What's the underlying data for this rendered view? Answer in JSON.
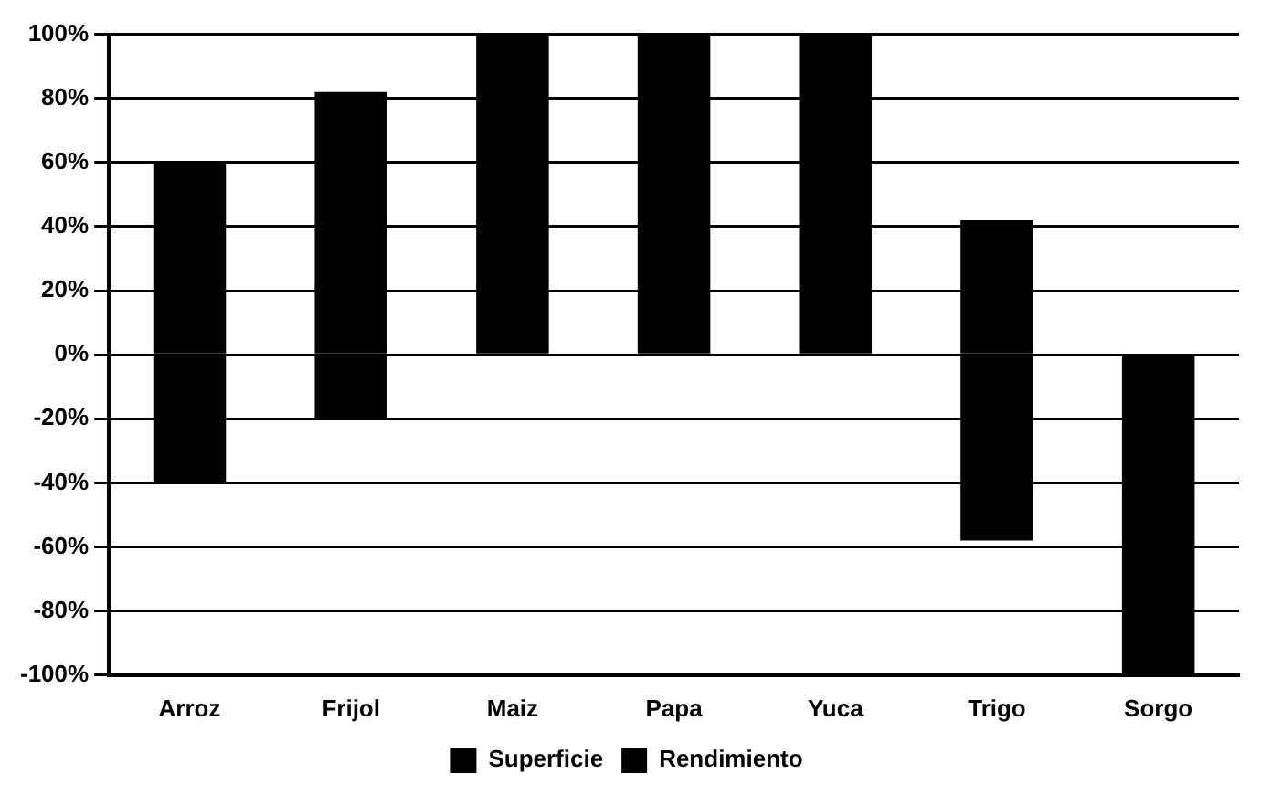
{
  "chart_data": {
    "type": "bar",
    "stacked": true,
    "categories": [
      "Arroz",
      "Frijol",
      "Maiz",
      "Papa",
      "Yuca",
      "Trigo",
      "Sorgo"
    ],
    "series": [
      {
        "name": "Superficie",
        "color": "#000000",
        "values": [
          -40,
          -20,
          0,
          0,
          0,
          -58,
          -100
        ]
      },
      {
        "name": "Rendimiento",
        "color": "#000000",
        "values": [
          60,
          82,
          100,
          100,
          100,
          42,
          0
        ]
      }
    ],
    "ylim": [
      -100,
      100
    ],
    "yticks": [
      {
        "value": 100,
        "label": "100%"
      },
      {
        "value": 80,
        "label": "80%"
      },
      {
        "value": 60,
        "label": "60%"
      },
      {
        "value": 40,
        "label": "40%"
      },
      {
        "value": 20,
        "label": "20%"
      },
      {
        "value": 0,
        "label": "0%"
      },
      {
        "value": -20,
        "label": "-20%"
      },
      {
        "value": -40,
        "label": "-40%"
      },
      {
        "value": -60,
        "label": "-60%"
      },
      {
        "value": -80,
        "label": "-80%"
      },
      {
        "value": -100,
        "label": "-100%"
      }
    ],
    "grid": "y",
    "legend": "bottom"
  }
}
